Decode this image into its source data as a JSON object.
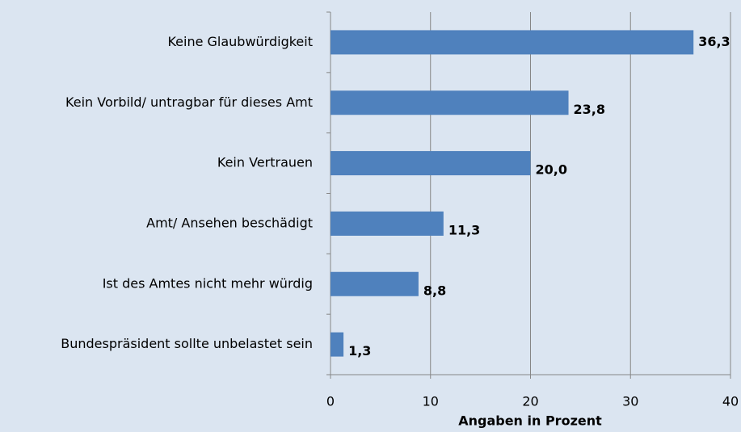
{
  "chart_data": {
    "type": "bar",
    "orientation": "horizontal",
    "xlabel": "Angaben in Prozent",
    "categories": [
      "Keine Glaubwürdigkeit",
      "Kein Vorbild/ untragbar für dieses Amt",
      "Kein Vertrauen",
      "Amt/ Ansehen beschädigt",
      "Ist des Amtes nicht mehr würdig",
      "Bundespräsident sollte unbelastet sein"
    ],
    "values": [
      36.3,
      23.8,
      20.0,
      11.3,
      8.8,
      1.3
    ],
    "value_labels": [
      "36,3",
      "23,8",
      "20,0",
      "11,3",
      "8,8",
      "1,3"
    ],
    "color": "#4f81bd",
    "xlim": [
      0,
      40
    ],
    "xticks": [
      0,
      10,
      20,
      30,
      40
    ],
    "grid": true
  }
}
